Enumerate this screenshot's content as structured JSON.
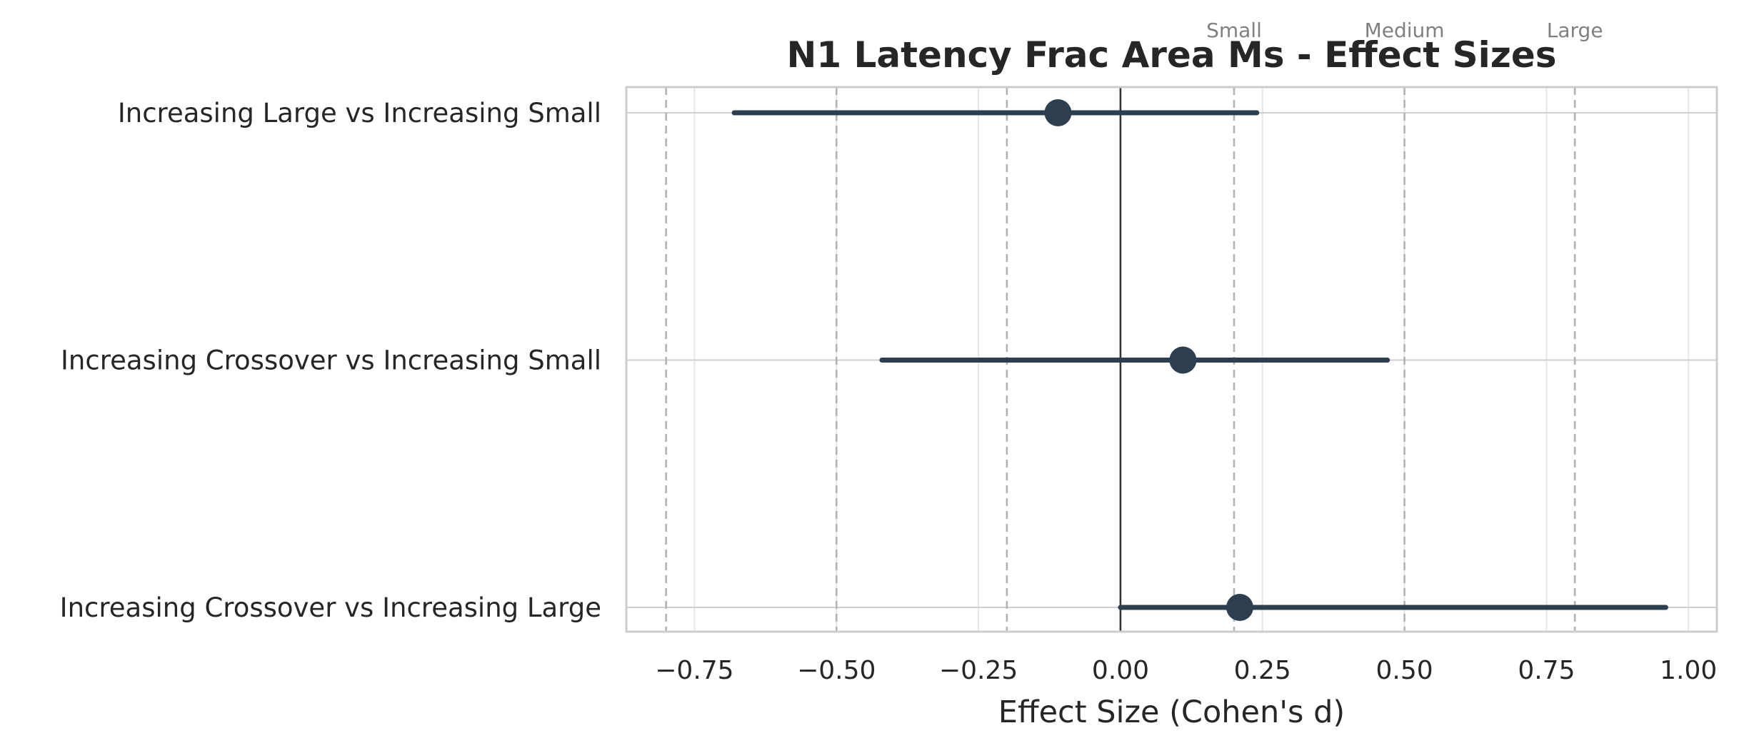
{
  "chart_data": {
    "type": "forest",
    "title": "N1 Latency Frac Area Ms - Effect Sizes",
    "xlabel": "Effect Size (Cohen's d)",
    "ylabel": "",
    "xlim": [
      -0.87,
      1.05
    ],
    "xticks": [
      -0.75,
      -0.5,
      -0.25,
      0.0,
      0.25,
      0.5,
      0.75,
      1.0
    ],
    "xtick_labels": [
      "−0.75",
      "−0.50",
      "−0.25",
      "0.00",
      "0.25",
      "0.50",
      "0.75",
      "1.00"
    ],
    "grid": true,
    "zero_line": 0,
    "reference_lines": [
      {
        "value": -0.8,
        "label": ""
      },
      {
        "value": -0.5,
        "label": ""
      },
      {
        "value": -0.2,
        "label": ""
      },
      {
        "value": 0.2,
        "label": "Small"
      },
      {
        "value": 0.5,
        "label": "Medium"
      },
      {
        "value": 0.8,
        "label": "Large"
      }
    ],
    "comparisons": [
      {
        "label": "Increasing Large vs Increasing Small",
        "d": -0.11,
        "ci_low": -0.68,
        "ci_high": 0.24
      },
      {
        "label": "Increasing Crossover vs Increasing Small",
        "d": 0.11,
        "ci_low": -0.42,
        "ci_high": 0.47
      },
      {
        "label": "Increasing Crossover vs Increasing Large",
        "d": 0.21,
        "ci_low": 0.0,
        "ci_high": 0.96
      }
    ],
    "colors": {
      "marker": "#2c3e50",
      "zero_line": "#333333",
      "reference_line": "#b3b3b3",
      "grid": "#e6e6e6",
      "frame": "#cccccc"
    }
  }
}
